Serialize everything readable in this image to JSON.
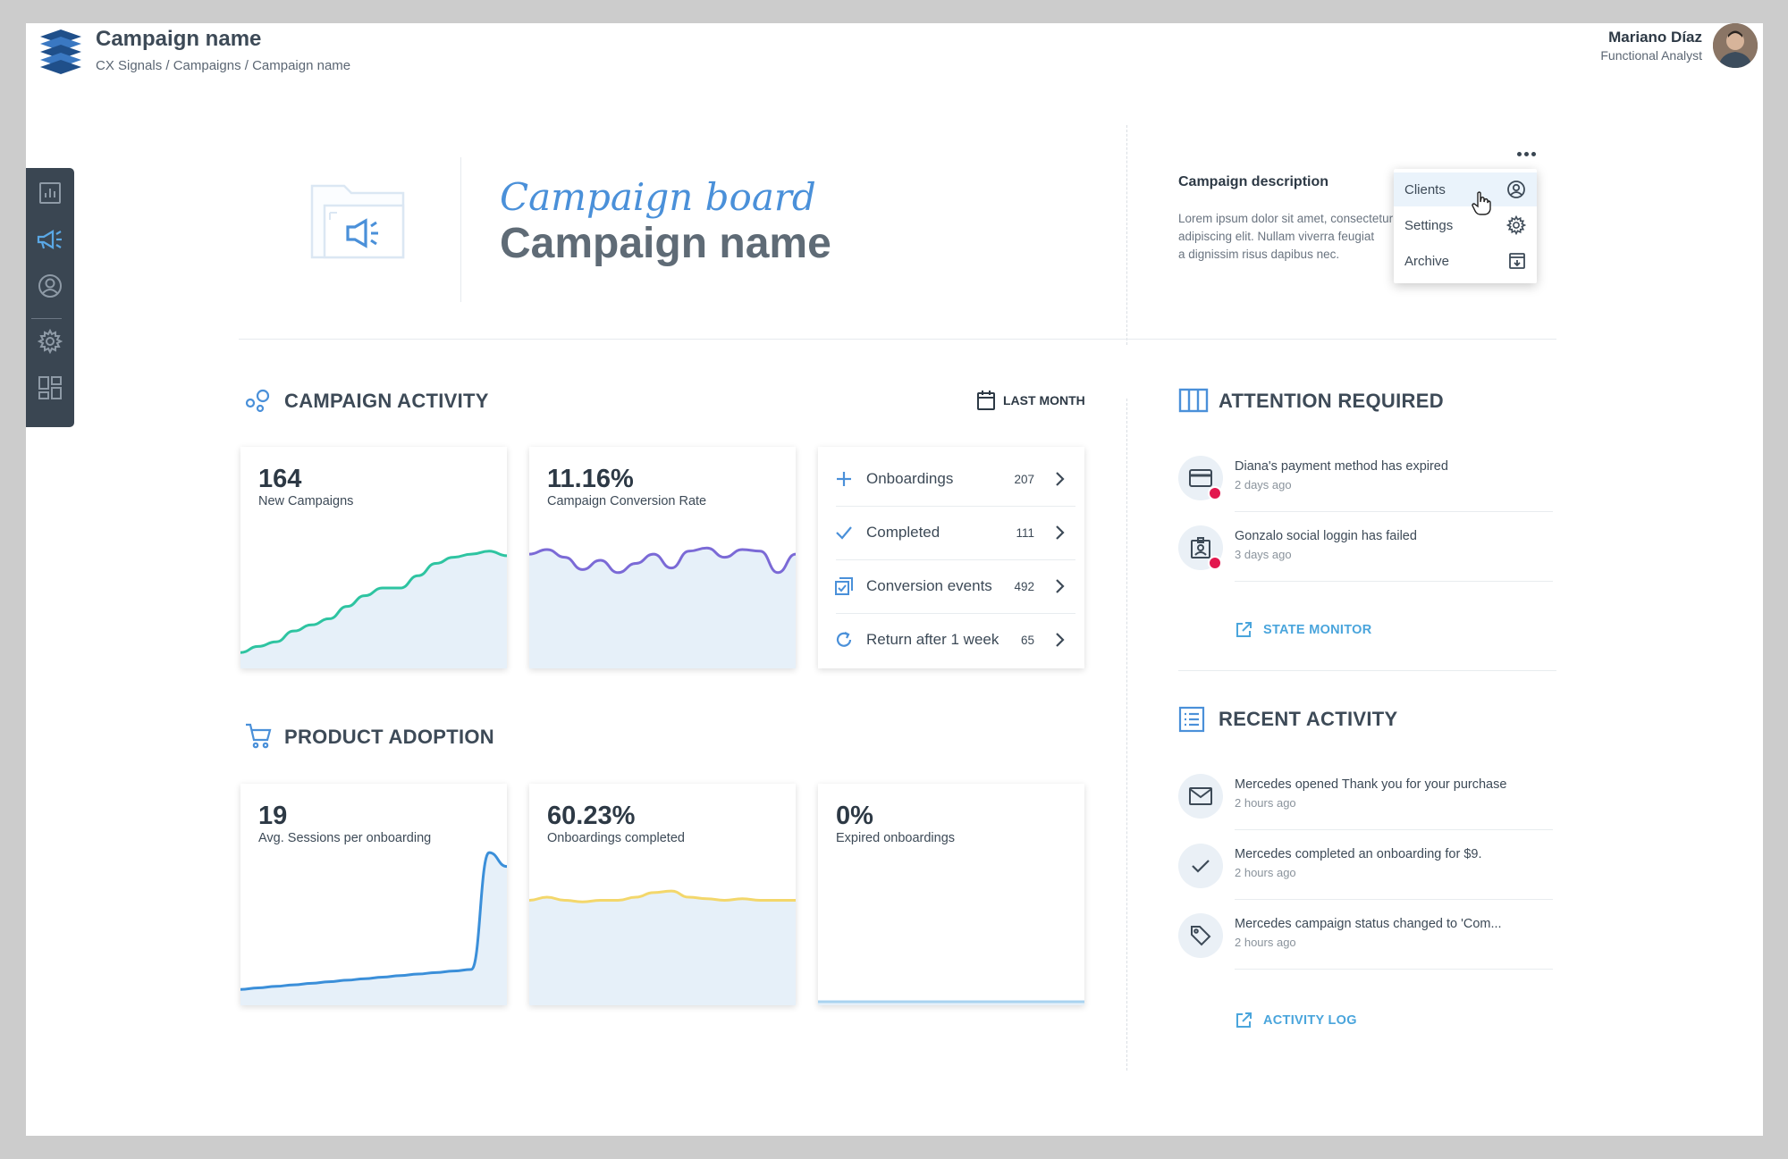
{
  "header": {
    "app_title": "Campaign name",
    "breadcrumb": [
      "CX Signals",
      "Campaigns",
      "Campaign name"
    ],
    "breadcrumb_text": "CX Signals / Campaigns / Campaign name",
    "user_name": "Mariano Díaz",
    "user_role": "Functional Analyst"
  },
  "sidebar": {
    "items": [
      {
        "icon": "bar-chart-icon"
      },
      {
        "icon": "megaphone-icon",
        "active": true
      },
      {
        "icon": "user-circle-icon"
      },
      {
        "icon": "gear-icon"
      },
      {
        "icon": "dashboard-icon"
      }
    ]
  },
  "hero": {
    "board_label": "Campaign board",
    "title": "Campaign name",
    "description_title": "Campaign description",
    "description_lines": [
      "Lorem ipsum dolor sit amet, consectetur",
      "adipiscing elit. Nullam viverra feugiat",
      "a dignissim risus dapibus nec."
    ]
  },
  "more_menu": {
    "items": [
      {
        "label": "Clients",
        "icon": "user-circle-icon",
        "hovered": true
      },
      {
        "label": "Settings",
        "icon": "gear-icon"
      },
      {
        "label": "Archive",
        "icon": "archive-icon"
      }
    ]
  },
  "campaign_activity": {
    "title": "CAMPAIGN ACTIVITY",
    "period": "LAST MONTH",
    "cards": [
      {
        "value": "164",
        "label": "New Campaigns",
        "color": "#2ec4a1"
      },
      {
        "value": "11.16%",
        "label": "Campaign Conversion Rate",
        "color": "#7b6ad6"
      }
    ],
    "list": [
      {
        "label": "Onboardings",
        "count": "207",
        "icon": "plus-icon"
      },
      {
        "label": "Completed",
        "count": "111",
        "icon": "check-icon"
      },
      {
        "label": "Conversion events",
        "count": "492",
        "icon": "checklist-icon"
      },
      {
        "label": "Return after 1 week",
        "count": "65",
        "icon": "refresh-icon"
      }
    ]
  },
  "product_adoption": {
    "title": "PRODUCT ADOPTION",
    "cards": [
      {
        "value": "19",
        "label": "Avg. Sessions per onboarding",
        "color": "#3b8fd9"
      },
      {
        "value": "60.23%",
        "label": "Onboardings completed",
        "color": "#f3d76b"
      },
      {
        "value": "0%",
        "label": "Expired onboardings",
        "color": "#a9d3f0"
      }
    ]
  },
  "attention": {
    "title": "ATTENTION REQUIRED",
    "items": [
      {
        "text": "Diana's payment method has expired",
        "time": "2 days ago",
        "icon": "credit-card-icon"
      },
      {
        "text": "Gonzalo social loggin has failed",
        "time": "3 days ago",
        "icon": "id-badge-icon"
      }
    ],
    "link": "STATE MONITOR"
  },
  "recent": {
    "title": "RECENT ACTIVITY",
    "items": [
      {
        "text": "Mercedes opened Thank you for your purchase",
        "time": "2 hours ago",
        "icon": "mail-icon"
      },
      {
        "text": "Mercedes completed an onboarding for $9.",
        "time": "2 hours ago",
        "icon": "check-icon"
      },
      {
        "text": "Mercedes campaign status changed to 'Com...",
        "time": "2 hours ago",
        "icon": "tag-icon"
      }
    ],
    "link": "ACTIVITY LOG"
  },
  "chart_data": [
    {
      "type": "area",
      "series": [
        {
          "values": [
            8,
            12,
            15,
            22,
            26,
            30,
            38,
            45,
            50,
            50,
            58,
            66,
            70,
            72,
            74,
            71
          ]
        }
      ],
      "ylim": [
        0,
        100
      ]
    },
    {
      "type": "area",
      "series": [
        {
          "values": [
            72,
            75,
            70,
            62,
            68,
            60,
            66,
            72,
            63,
            74,
            76,
            70,
            75,
            74,
            60,
            72
          ]
        }
      ],
      "ylim": [
        0,
        100
      ]
    },
    {
      "type": "area",
      "series": [
        {
          "values": [
            8,
            9,
            10,
            11,
            12,
            13,
            14,
            15,
            16,
            17,
            18,
            19,
            20,
            21,
            97,
            88
          ]
        }
      ],
      "ylim": [
        0,
        100
      ]
    },
    {
      "type": "area",
      "series": [
        {
          "values": [
            66,
            68,
            66,
            65,
            66,
            66,
            68,
            71,
            72,
            68,
            67,
            66,
            67,
            66,
            66,
            66
          ]
        }
      ],
      "ylim": [
        0,
        100
      ]
    },
    {
      "type": "area",
      "series": [
        {
          "values": [
            0,
            0,
            0,
            0,
            0,
            0,
            0,
            0,
            0,
            0,
            0,
            0,
            0,
            0,
            0,
            0
          ]
        }
      ],
      "ylim": [
        0,
        100
      ]
    }
  ]
}
